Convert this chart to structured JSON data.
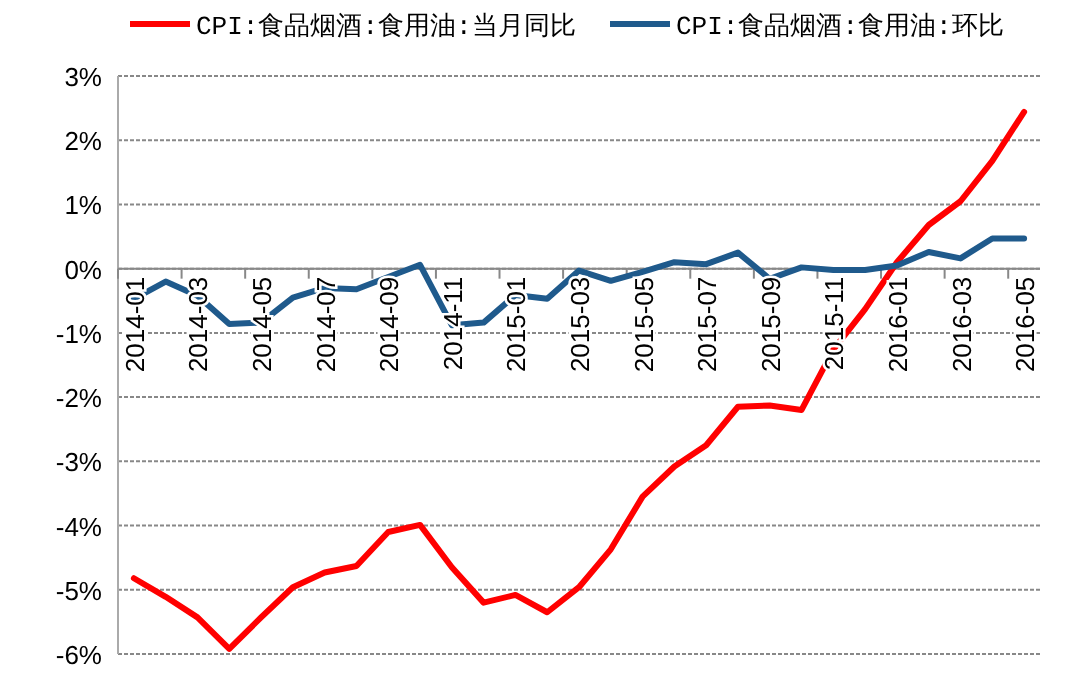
{
  "chart_data": {
    "type": "line",
    "categories": [
      "2014-01",
      null,
      "2014-03",
      null,
      "2014-05",
      null,
      "2014-07",
      null,
      "2014-09",
      null,
      "2014-11",
      null,
      "2015-01",
      null,
      "2015-03",
      null,
      "2015-05",
      null,
      "2015-07",
      null,
      "2015-09",
      null,
      "2015-11",
      null,
      "2016-01",
      null,
      "2016-03",
      null,
      "2016-05"
    ],
    "series": [
      {
        "name": "CPI:食品烟酒:食用油:当月同比",
        "color": "#ff0000",
        "values": [
          -4.82,
          -5.11,
          -5.43,
          -5.92,
          -5.43,
          -4.96,
          -4.73,
          -4.63,
          -4.1,
          -3.99,
          -4.65,
          -5.2,
          -5.08,
          -5.35,
          -4.96,
          -4.37,
          -3.55,
          -3.08,
          -2.75,
          -2.15,
          -2.13,
          -2.2,
          -1.26,
          -0.63,
          0.1,
          0.68,
          1.05,
          1.68,
          2.44
        ]
      },
      {
        "name": "CPI:食品烟酒:食用油:环比",
        "color": "#1f5a8c",
        "values": [
          -0.47,
          -0.2,
          -0.42,
          -0.86,
          -0.84,
          -0.45,
          -0.3,
          -0.32,
          -0.13,
          0.06,
          -0.88,
          -0.84,
          -0.41,
          -0.47,
          -0.03,
          -0.19,
          -0.05,
          0.1,
          0.07,
          0.25,
          -0.16,
          0.02,
          -0.02,
          -0.02,
          0.05,
          0.26,
          0.16,
          0.47,
          0.47
        ]
      }
    ],
    "ylim": [
      -6,
      3
    ],
    "yticks": [
      {
        "value": -6,
        "label": "-6%"
      },
      {
        "value": -5,
        "label": "-5%"
      },
      {
        "value": -4,
        "label": "-4%"
      },
      {
        "value": -3,
        "label": "-3%"
      },
      {
        "value": -2,
        "label": "-2%"
      },
      {
        "value": -1,
        "label": "-1%"
      },
      {
        "value": 0,
        "label": "0%"
      },
      {
        "value": 1,
        "label": "1%"
      },
      {
        "value": 2,
        "label": "2%"
      },
      {
        "value": 3,
        "label": "3%"
      }
    ],
    "grid": "y",
    "legend": "top",
    "marker": "none",
    "line_style": "solid"
  }
}
